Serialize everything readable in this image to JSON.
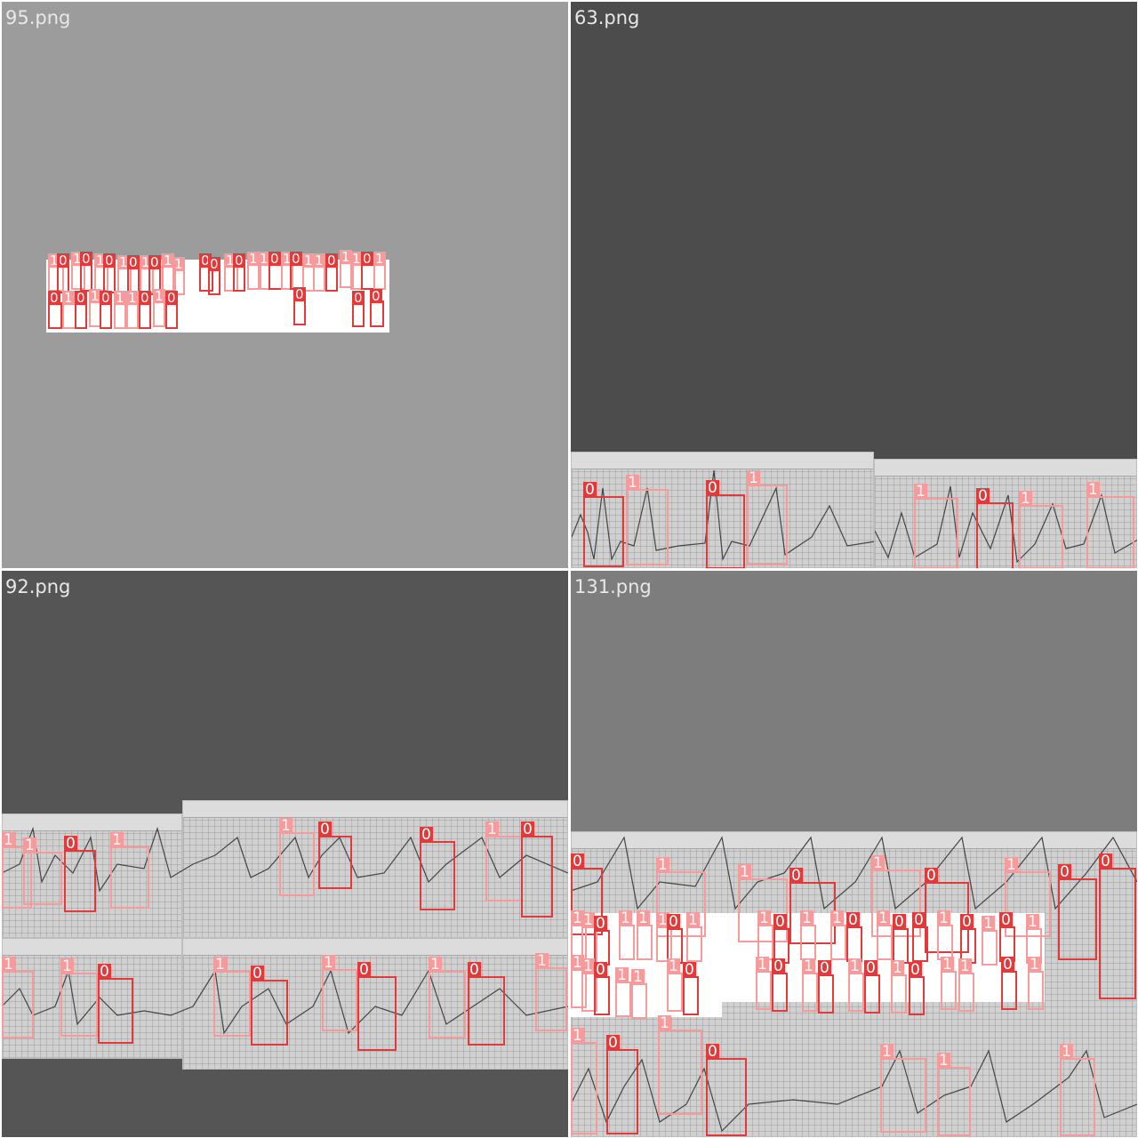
{
  "tiles": [
    {
      "title": "95.png",
      "bg": "#9c9c9c"
    },
    {
      "title": "63.png",
      "bg": "#4c4c4c"
    },
    {
      "title": "92.png",
      "bg": "#555555"
    },
    {
      "title": "131.png",
      "bg": "#7d7d7d"
    }
  ],
  "class_labels": {
    "c0": "0",
    "c1": "1"
  },
  "colors": {
    "class0": "#e23a3a",
    "class1": "#f59b9b"
  }
}
